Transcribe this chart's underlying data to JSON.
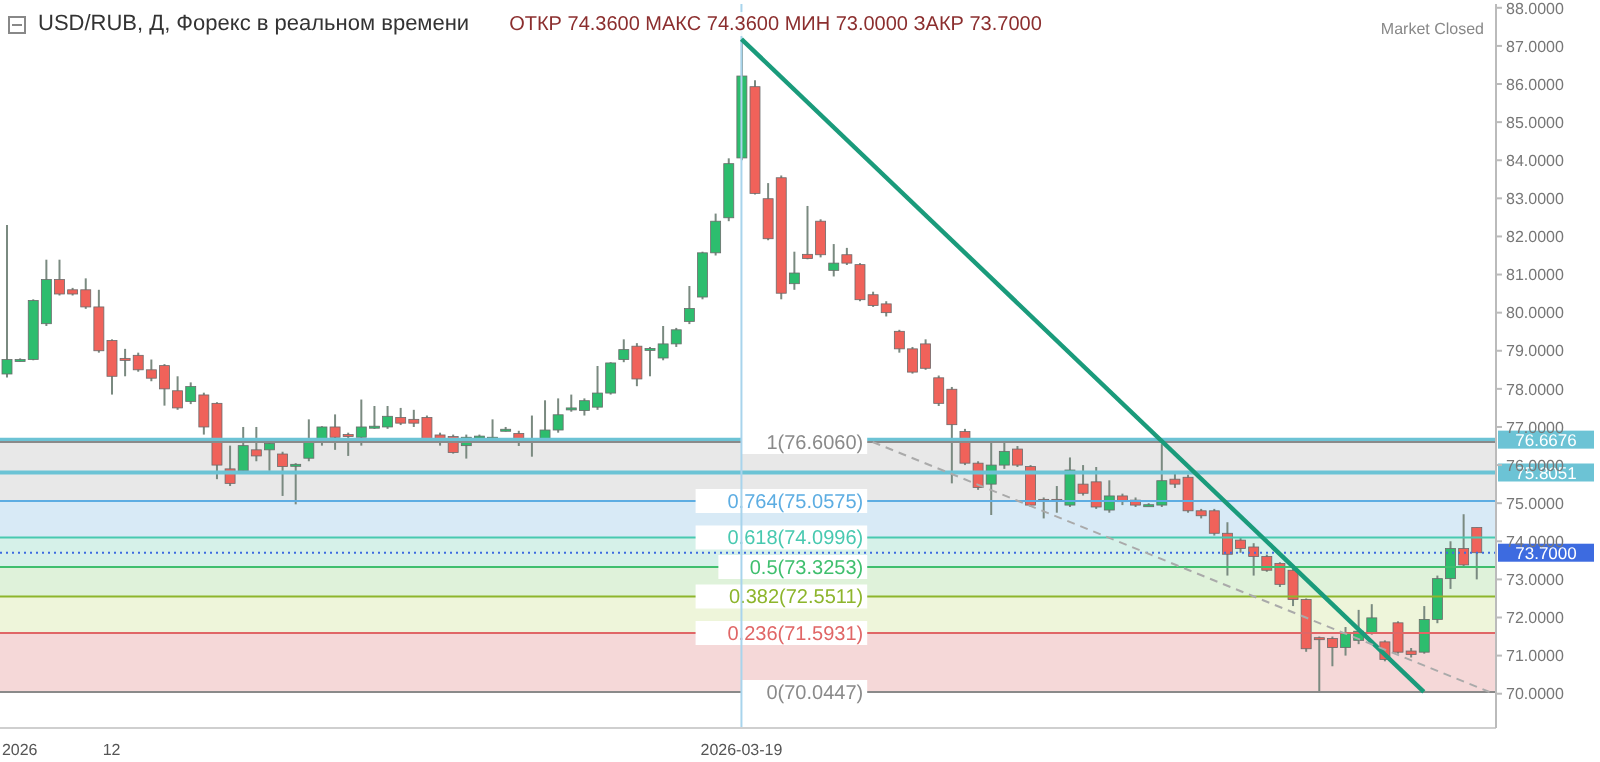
{
  "chart_data": {
    "type": "candlestick",
    "title": "USD/RUB, Д, Форекс в реальном времени",
    "subtitle": "ОТКР 74.3600  МАКС 74.3600  МИН 73.0000  ЗАКР 73.7000",
    "annotations": [
      "Market Closed"
    ],
    "categories": [
      null,
      "2026",
      null,
      null,
      null,
      null,
      null,
      null,
      "12",
      null,
      null,
      null,
      null,
      null,
      null,
      null,
      null,
      null,
      null,
      null,
      null,
      null,
      null,
      null,
      null,
      null,
      null,
      null,
      null,
      null,
      null,
      null,
      null,
      null,
      null,
      null,
      null,
      null,
      null,
      null,
      null,
      null,
      null,
      null,
      null,
      null,
      null,
      null,
      null,
      null,
      null,
      null,
      null,
      null,
      null,
      null,
      "2026-03-19",
      null,
      null,
      null,
      null,
      null,
      null,
      null,
      null,
      null,
      null,
      null,
      null,
      null,
      null,
      null,
      null,
      null,
      null,
      null,
      null,
      null,
      null,
      null,
      null,
      null,
      null,
      null,
      null,
      null,
      null,
      null,
      null,
      null,
      null,
      null,
      null,
      null,
      null,
      null,
      null,
      null,
      null,
      null,
      null,
      null,
      null,
      null,
      null,
      null,
      null,
      null,
      null,
      null,
      null,
      null,
      null,
      null
    ],
    "ylim": [
      69.1,
      88.1
    ],
    "yticks": [
      {
        "value": 70,
        "label": "70.0000"
      },
      {
        "value": 71,
        "label": "71.0000"
      },
      {
        "value": 72,
        "label": "72.0000"
      },
      {
        "value": 73,
        "label": "73.0000"
      },
      {
        "value": 74,
        "label": "74.0000"
      },
      {
        "value": 75,
        "label": "75.0000"
      },
      {
        "value": 76,
        "label": "76.0000"
      },
      {
        "value": 77,
        "label": "77.0000"
      },
      {
        "value": 78,
        "label": "78.0000"
      },
      {
        "value": 79,
        "label": "79.0000"
      },
      {
        "value": 80,
        "label": "80.0000"
      },
      {
        "value": 81,
        "label": "81.0000"
      },
      {
        "value": 82,
        "label": "82.0000"
      },
      {
        "value": 83,
        "label": "83.0000"
      },
      {
        "value": 84,
        "label": "84.0000"
      },
      {
        "value": 85,
        "label": "85.0000"
      },
      {
        "value": 86,
        "label": "86.0000"
      },
      {
        "value": 87,
        "label": "87.0000"
      },
      {
        "value": 88,
        "label": "88.0000"
      }
    ],
    "series": [
      {
        "type": "candlestick",
        "ohlc": [
          [
            78.39,
            82.3,
            78.3,
            78.77
          ],
          [
            78.75,
            78.8,
            78.72,
            78.77
          ],
          [
            78.77,
            80.35,
            78.75,
            80.32
          ],
          [
            79.71,
            81.39,
            79.65,
            80.87
          ],
          [
            80.87,
            81.39,
            80.45,
            80.49
          ],
          [
            80.6,
            80.65,
            80.45,
            80.49
          ],
          [
            80.6,
            80.9,
            80.1,
            80.15
          ],
          [
            80.15,
            80.6,
            78.95,
            79.0
          ],
          [
            79.27,
            79.3,
            77.85,
            78.33
          ],
          [
            78.8,
            79.05,
            78.33,
            78.77
          ],
          [
            78.88,
            78.95,
            78.45,
            78.5
          ],
          [
            78.5,
            78.77,
            78.2,
            78.28
          ],
          [
            78.61,
            78.65,
            77.56,
            78.0
          ],
          [
            77.95,
            78.33,
            77.45,
            77.5
          ],
          [
            77.67,
            78.17,
            77.6,
            78.06
          ],
          [
            77.84,
            77.9,
            76.8,
            77.0
          ],
          [
            77.62,
            77.65,
            75.63,
            76.0
          ],
          [
            75.9,
            76.51,
            75.45,
            75.52
          ],
          [
            75.85,
            77.0,
            75.8,
            76.51
          ],
          [
            76.4,
            77.0,
            76.1,
            76.24
          ],
          [
            76.4,
            76.6,
            75.85,
            76.57
          ],
          [
            76.29,
            76.35,
            75.19,
            75.96
          ],
          [
            76.0,
            76.05,
            74.97,
            76.02
          ],
          [
            76.18,
            77.2,
            76.1,
            76.68
          ],
          [
            76.68,
            77.02,
            76.51,
            77.0
          ],
          [
            77.0,
            77.33,
            76.4,
            76.73
          ],
          [
            76.8,
            76.85,
            76.24,
            76.79
          ],
          [
            76.73,
            77.72,
            76.51,
            77.0
          ],
          [
            77.0,
            77.55,
            76.95,
            77.02
          ],
          [
            77.0,
            77.55,
            76.95,
            77.28
          ],
          [
            77.25,
            77.5,
            77.05,
            77.1
          ],
          [
            77.2,
            77.45,
            77.0,
            77.1
          ],
          [
            77.25,
            77.3,
            76.6,
            76.64
          ],
          [
            76.79,
            76.85,
            76.51,
            76.66
          ],
          [
            76.75,
            76.8,
            76.3,
            76.33
          ],
          [
            76.51,
            76.8,
            76.17,
            76.73
          ],
          [
            76.74,
            76.8,
            76.7,
            76.76
          ],
          [
            76.64,
            77.2,
            76.6,
            76.73
          ],
          [
            76.92,
            77.0,
            76.88,
            76.94
          ],
          [
            76.83,
            76.9,
            76.5,
            76.6
          ],
          [
            76.65,
            77.3,
            76.22,
            76.67
          ],
          [
            76.69,
            77.7,
            76.65,
            76.92
          ],
          [
            76.92,
            77.75,
            76.85,
            77.32
          ],
          [
            77.46,
            77.85,
            77.4,
            77.5
          ],
          [
            77.43,
            77.75,
            77.3,
            77.69
          ],
          [
            77.52,
            78.6,
            77.45,
            77.89
          ],
          [
            77.89,
            78.7,
            77.85,
            78.68
          ],
          [
            78.77,
            79.3,
            78.7,
            79.03
          ],
          [
            79.12,
            79.2,
            78.07,
            78.26
          ],
          [
            79.04,
            79.1,
            78.33,
            79.06
          ],
          [
            78.81,
            79.65,
            78.75,
            79.18
          ],
          [
            79.18,
            79.6,
            79.1,
            79.55
          ],
          [
            79.77,
            80.7,
            79.7,
            80.11
          ],
          [
            80.41,
            81.6,
            80.35,
            81.57
          ],
          [
            81.57,
            82.6,
            81.5,
            82.4
          ],
          [
            82.49,
            84.05,
            82.4,
            83.91
          ],
          [
            84.06,
            87.18,
            84.0,
            86.21
          ],
          [
            85.93,
            86.1,
            83.1,
            83.13
          ],
          [
            82.99,
            83.4,
            81.9,
            81.94
          ],
          [
            83.54,
            83.6,
            80.35,
            80.51
          ],
          [
            80.76,
            81.6,
            80.6,
            81.04
          ],
          [
            81.53,
            82.8,
            81.4,
            81.42
          ],
          [
            82.4,
            82.45,
            81.45,
            81.52
          ],
          [
            81.11,
            81.8,
            80.95,
            81.3
          ],
          [
            81.52,
            81.7,
            81.25,
            81.3
          ],
          [
            81.26,
            81.3,
            80.3,
            80.34
          ],
          [
            80.47,
            80.55,
            80.15,
            80.19
          ],
          [
            80.23,
            80.3,
            79.9,
            80.0
          ],
          [
            79.51,
            79.55,
            78.95,
            79.05
          ],
          [
            79.05,
            79.1,
            78.4,
            78.44
          ],
          [
            79.18,
            79.3,
            78.5,
            78.54
          ],
          [
            78.29,
            78.35,
            77.55,
            77.62
          ],
          [
            77.99,
            78.05,
            75.52,
            77.06
          ],
          [
            76.88,
            76.95,
            76.0,
            76.05
          ],
          [
            76.05,
            76.1,
            75.35,
            75.41
          ],
          [
            75.5,
            76.7,
            74.69,
            76.0
          ],
          [
            76.0,
            76.6,
            75.9,
            76.36
          ],
          [
            76.42,
            76.5,
            75.95,
            76.0
          ],
          [
            75.96,
            76.0,
            74.9,
            74.95
          ],
          [
            75.1,
            75.15,
            74.6,
            75.08
          ],
          [
            75.1,
            75.45,
            74.75,
            75.08
          ],
          [
            74.95,
            76.2,
            74.9,
            75.87
          ],
          [
            75.5,
            76.0,
            75.2,
            75.26
          ],
          [
            75.56,
            75.95,
            74.85,
            74.9
          ],
          [
            74.82,
            75.6,
            74.75,
            75.19
          ],
          [
            75.19,
            75.25,
            74.95,
            75.04
          ],
          [
            75.08,
            75.15,
            74.9,
            74.95
          ],
          [
            74.95,
            75.0,
            74.92,
            74.96
          ],
          [
            74.95,
            76.55,
            74.9,
            75.59
          ],
          [
            75.63,
            75.8,
            75.4,
            75.5
          ],
          [
            75.68,
            75.75,
            74.75,
            74.8
          ],
          [
            74.8,
            74.85,
            74.6,
            74.67
          ],
          [
            74.8,
            74.85,
            74.15,
            74.21
          ],
          [
            74.21,
            74.5,
            73.1,
            73.66
          ],
          [
            74.03,
            74.1,
            73.7,
            73.81
          ],
          [
            73.85,
            73.95,
            73.1,
            73.6
          ],
          [
            73.6,
            73.65,
            73.2,
            73.24
          ],
          [
            73.42,
            73.45,
            72.8,
            72.87
          ],
          [
            73.24,
            73.3,
            72.3,
            72.47
          ],
          [
            72.47,
            72.5,
            71.1,
            71.18
          ],
          [
            71.47,
            71.5,
            70.07,
            71.45
          ],
          [
            71.45,
            71.5,
            70.72,
            71.21
          ],
          [
            71.21,
            71.75,
            71.0,
            71.58
          ],
          [
            71.4,
            72.2,
            71.3,
            71.64
          ],
          [
            71.6,
            72.35,
            71.55,
            71.99
          ],
          [
            71.36,
            71.4,
            70.85,
            70.9
          ],
          [
            71.86,
            71.9,
            71.05,
            71.09
          ],
          [
            71.12,
            71.2,
            70.95,
            71.03
          ],
          [
            71.09,
            72.3,
            71.05,
            71.95
          ],
          [
            71.95,
            73.1,
            71.85,
            73.02
          ],
          [
            73.02,
            74.0,
            72.75,
            73.81
          ],
          [
            73.81,
            74.71,
            73.3,
            73.38
          ],
          [
            74.36,
            74.36,
            73.0,
            73.7
          ],
          null
        ],
        "colors": [
          "#2dbd6e",
          "#2dbd6e",
          "#2dbd6e",
          "#2dbd6e",
          "#f0625a",
          "#f0625a",
          "#f0625a",
          "#f0625a",
          "#f0625a",
          "#f0625a",
          "#f0625a",
          "#f0625a",
          "#f0625a",
          "#f0625a",
          "#2dbd6e",
          "#f0625a",
          "#f0625a",
          "#f0625a",
          "#2dbd6e",
          "#f0625a",
          "#2dbd6e",
          "#f0625a",
          "#2dbd6e",
          "#2dbd6e",
          "#2dbd6e",
          "#f0625a",
          "#f0625a",
          "#2dbd6e",
          "#2dbd6e",
          "#2dbd6e",
          "#f0625a",
          "#f0625a",
          "#f0625a",
          "#f0625a",
          "#f0625a",
          "#2dbd6e",
          "#2dbd6e",
          "#2dbd6e",
          "#2dbd6e",
          "#f0625a",
          "#2dbd6e",
          "#2dbd6e",
          "#2dbd6e",
          "#2dbd6e",
          "#2dbd6e",
          "#2dbd6e",
          "#2dbd6e",
          "#2dbd6e",
          "#f0625a",
          "#2dbd6e",
          "#2dbd6e",
          "#2dbd6e",
          "#2dbd6e",
          "#2dbd6e",
          "#2dbd6e",
          "#2dbd6e",
          "#2dbd6e",
          "#f0625a",
          "#f0625a",
          "#f0625a",
          "#2dbd6e",
          "#f0625a",
          "#f0625a",
          "#2dbd6e",
          "#f0625a",
          "#f0625a",
          "#f0625a",
          "#f0625a",
          "#f0625a",
          "#f0625a",
          "#f0625a",
          "#f0625a",
          "#f0625a",
          "#f0625a",
          "#f0625a",
          "#2dbd6e",
          "#2dbd6e",
          "#f0625a",
          "#f0625a",
          "#f0625a",
          "#f0625a",
          "#2dbd6e",
          "#f0625a",
          "#f0625a",
          "#2dbd6e",
          "#f0625a",
          "#f0625a",
          "#2dbd6e",
          "#2dbd6e",
          "#f0625a",
          "#f0625a",
          "#f0625a",
          "#f0625a",
          "#f0625a",
          "#f0625a",
          "#f0625a",
          "#f0625a",
          "#f0625a",
          "#f0625a",
          "#f0625a",
          "#f0625a",
          "#f0625a",
          "#2dbd6e",
          "#2dbd6e",
          "#2dbd6e",
          "#f0625a",
          "#f0625a",
          "#f0625a",
          "#2dbd6e",
          "#2dbd6e",
          "#2dbd6e",
          "#f0625a",
          "#f0625a",
          null
        ]
      },
      {
        "type": "line",
        "color": "#1a9b7b",
        "values": [
          null,
          null,
          null,
          null,
          null,
          null,
          null,
          null,
          null,
          null,
          null,
          null,
          null,
          null,
          null,
          null,
          null,
          null,
          null,
          null,
          null,
          null,
          null,
          null,
          null,
          null,
          null,
          null,
          null,
          null,
          null,
          null,
          null,
          null,
          null,
          null,
          null,
          null,
          null,
          null,
          null,
          null,
          null,
          null,
          null,
          null,
          null,
          null,
          null,
          null,
          null,
          null,
          null,
          null,
          null,
          null,
          87.18,
          null,
          null,
          null,
          null,
          null,
          null,
          null,
          null,
          null,
          null,
          null,
          null,
          null,
          null,
          null,
          null,
          null,
          null,
          null,
          null,
          null,
          null,
          null,
          null,
          null,
          null,
          null,
          null,
          null,
          null,
          null,
          null,
          null,
          null,
          null,
          null,
          null,
          null,
          null,
          null,
          null,
          null,
          null,
          null,
          null,
          null,
          null,
          null,
          null,
          null,
          null,
          70.05,
          null,
          null,
          null,
          null,
          null
        ]
      },
      {
        "type": "line",
        "color": "#aaaaaa",
        "line_style": "dashed",
        "values": [
          null,
          null,
          null,
          null,
          null,
          null,
          null,
          null,
          null,
          null,
          null,
          null,
          null,
          null,
          null,
          null,
          null,
          null,
          null,
          null,
          null,
          null,
          null,
          null,
          null,
          null,
          null,
          null,
          null,
          null,
          null,
          null,
          null,
          null,
          null,
          null,
          null,
          null,
          null,
          null,
          null,
          null,
          null,
          null,
          null,
          null,
          null,
          null,
          null,
          null,
          null,
          null,
          null,
          null,
          null,
          null,
          null,
          null,
          null,
          null,
          null,
          null,
          null,
          null,
          null,
          null,
          76.606,
          null,
          null,
          null,
          null,
          null,
          null,
          null,
          null,
          null,
          null,
          null,
          null,
          null,
          null,
          null,
          null,
          null,
          null,
          null,
          null,
          null,
          null,
          null,
          null,
          null,
          null,
          null,
          null,
          null,
          null,
          null,
          null,
          null,
          null,
          null,
          null,
          null,
          null,
          null,
          null,
          null,
          null,
          null,
          null,
          null,
          null,
          70.0447
        ]
      }
    ],
    "bands": [
      {
        "axis": "y",
        "from": 75.0575,
        "to": 76.606,
        "color": "#e8e8e8"
      },
      {
        "axis": "y",
        "from": 74.0996,
        "to": 75.0575,
        "color": "#d8eaf6"
      },
      {
        "axis": "y",
        "from": 73.3253,
        "to": 74.0996,
        "color": "#d6f1e9"
      },
      {
        "axis": "y",
        "from": 72.5511,
        "to": 73.3253,
        "color": "#dff2da"
      },
      {
        "axis": "y",
        "from": 71.5931,
        "to": 72.5511,
        "color": "#eef5da"
      },
      {
        "axis": "y",
        "from": 70.0447,
        "to": 71.5931,
        "color": "#f5d8d8"
      }
    ],
    "ref_lines": [
      {
        "axis": "y",
        "value": 76.6676,
        "label": "76.6676",
        "color": "#6cc3d5",
        "line_style": "solid"
      },
      {
        "axis": "y",
        "value": 75.8051,
        "label": "75.8051",
        "color": "#6cc3d5",
        "line_style": "solid"
      },
      {
        "axis": "y",
        "value": 73.7,
        "label": "73.7000",
        "color": "#3d6be0",
        "line_style": "dotted"
      },
      {
        "axis": "y",
        "value": 76.606,
        "label": "1(76.6060)",
        "color": "#8a8a8a"
      },
      {
        "axis": "y",
        "value": 75.0575,
        "label": "0.764(75.0575)",
        "color": "#5dade2"
      },
      {
        "axis": "y",
        "value": 74.0996,
        "label": "0.618(74.0996)",
        "color": "#48c9b0"
      },
      {
        "axis": "y",
        "value": 73.3253,
        "label": "0.5(73.3253)",
        "color": "#3fbf6e"
      },
      {
        "axis": "y",
        "value": 72.5511,
        "label": "0.382(72.5511)",
        "color": "#8db52c"
      },
      {
        "axis": "y",
        "value": 71.5931,
        "label": "0.236(71.5931)",
        "color": "#e06666"
      },
      {
        "axis": "y",
        "value": 70.0447,
        "label": "0(70.0447)",
        "color": "#8a8a8a"
      },
      {
        "axis": "x",
        "value": "2026-03-19",
        "color": "#a8d4ec"
      }
    ]
  }
}
